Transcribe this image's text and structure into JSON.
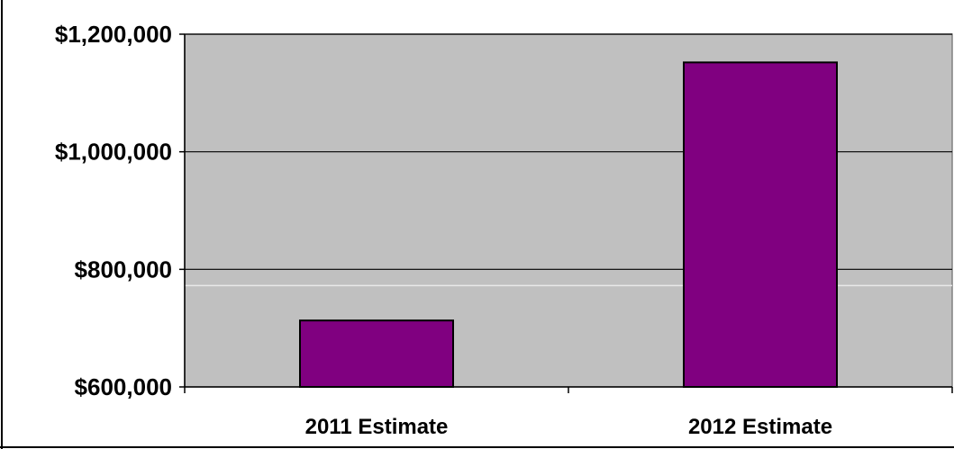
{
  "chart_data": {
    "type": "bar",
    "categories": [
      "2011 Estimate",
      "2012 Estimate"
    ],
    "values": [
      713000,
      1152000
    ],
    "ylim": [
      600000,
      1200000
    ],
    "yticks": [
      600000,
      800000,
      1000000,
      1200000
    ],
    "ytick_labels": [
      "$600,000",
      "$800,000",
      "$1,000,000",
      "$1,200,000"
    ],
    "grid": true,
    "colors": {
      "plot_background": "#c0c0c0",
      "bar_fill": "#800080",
      "bar_stroke": "#000000",
      "gridline": "#000000"
    }
  }
}
